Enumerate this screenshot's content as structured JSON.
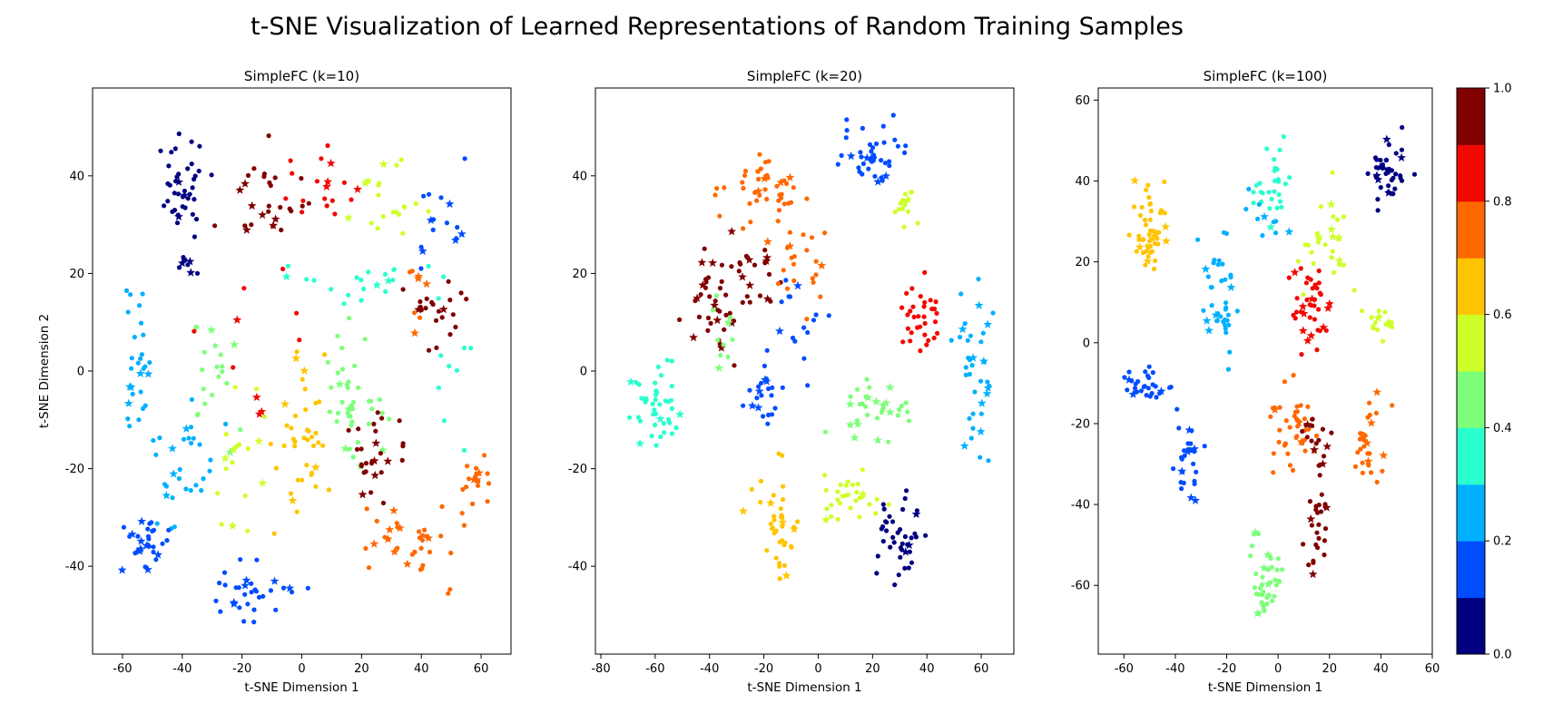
{
  "figure": {
    "title": "t-SNE Visualization of Learned Representations of Random Training Samples"
  },
  "colorbar": {
    "ticks": [
      "0.0",
      "0.2",
      "0.4",
      "0.6",
      "0.8",
      "1.0"
    ],
    "colors": [
      "#000080",
      "#0000f1",
      "#004cff",
      "#00b0ff",
      "#29ffce",
      "#7dff7a",
      "#ceff29",
      "#ffc400",
      "#ff6800",
      "#f10800",
      "#800000"
    ]
  },
  "chart_data": [
    {
      "type": "scatter",
      "title": "SimpleFC (k=10)",
      "xlabel": "t-SNE Dimension 1",
      "ylabel": "t-SNE Dimension 2",
      "xlim": [
        -70,
        70
      ],
      "ylim": [
        -58,
        58
      ],
      "xticks": [
        -60,
        -40,
        -20,
        0,
        20,
        40,
        60
      ],
      "yticks": [
        -40,
        -20,
        0,
        20,
        40
      ],
      "clusters": [
        {
          "class": 0,
          "center": [
            -40,
            38
          ],
          "spread": [
            7,
            9
          ],
          "n": 40
        },
        {
          "class": 0,
          "center": [
            -38,
            22
          ],
          "spread": [
            3,
            3
          ],
          "n": 8
        },
        {
          "class": 10,
          "center": [
            -10,
            36
          ],
          "spread": [
            14,
            10
          ],
          "n": 28
        },
        {
          "class": 9,
          "center": [
            5,
            40
          ],
          "spread": [
            14,
            9
          ],
          "n": 18
        },
        {
          "class": 6,
          "center": [
            28,
            35
          ],
          "spread": [
            10,
            8
          ],
          "n": 20
        },
        {
          "class": 4,
          "center": [
            20,
            20
          ],
          "spread": [
            22,
            8
          ],
          "n": 20
        },
        {
          "class": 2,
          "center": [
            45,
            32
          ],
          "spread": [
            8,
            10
          ],
          "n": 16
        },
        {
          "class": 10,
          "center": [
            45,
            13
          ],
          "spread": [
            8,
            10
          ],
          "n": 22
        },
        {
          "class": 8,
          "center": [
            38,
            17
          ],
          "spread": [
            6,
            6
          ],
          "n": 8
        },
        {
          "class": 3,
          "center": [
            -55,
            0
          ],
          "spread": [
            5,
            14
          ],
          "n": 28
        },
        {
          "class": 5,
          "center": [
            -28,
            2
          ],
          "spread": [
            9,
            14
          ],
          "n": 20
        },
        {
          "class": 7,
          "center": [
            0,
            -12
          ],
          "spread": [
            10,
            14
          ],
          "n": 40
        },
        {
          "class": 5,
          "center": [
            18,
            -5
          ],
          "spread": [
            12,
            14
          ],
          "n": 40
        },
        {
          "class": 10,
          "center": [
            25,
            -18
          ],
          "spread": [
            10,
            9
          ],
          "n": 28
        },
        {
          "class": 3,
          "center": [
            -40,
            -20
          ],
          "spread": [
            9,
            12
          ],
          "n": 30
        },
        {
          "class": 2,
          "center": [
            -52,
            -35
          ],
          "spread": [
            6,
            6
          ],
          "n": 30
        },
        {
          "class": 2,
          "center": [
            -15,
            -45
          ],
          "spread": [
            15,
            5
          ],
          "n": 32
        },
        {
          "class": 8,
          "center": [
            38,
            -35
          ],
          "spread": [
            14,
            8
          ],
          "n": 38
        },
        {
          "class": 8,
          "center": [
            58,
            -22
          ],
          "spread": [
            5,
            6
          ],
          "n": 18
        },
        {
          "class": 6,
          "center": [
            -22,
            -15
          ],
          "spread": [
            8,
            15
          ],
          "n": 18
        },
        {
          "class": 9,
          "center": [
            -15,
            5
          ],
          "spread": [
            15,
            15
          ],
          "n": 10
        },
        {
          "class": 4,
          "center": [
            50,
            -2
          ],
          "spread": [
            8,
            15
          ],
          "n": 10
        }
      ]
    },
    {
      "type": "scatter",
      "title": "SimpleFC (k=20)",
      "xlabel": "t-SNE Dimension 1",
      "ylabel": "",
      "xlim": [
        -82,
        72
      ],
      "ylim": [
        -58,
        58
      ],
      "xticks": [
        -80,
        -60,
        -40,
        -20,
        0,
        20,
        40,
        60
      ],
      "yticks": [
        -40,
        -20,
        0,
        20,
        40
      ],
      "clusters": [
        {
          "class": 8,
          "center": [
            -20,
            38
          ],
          "spread": [
            13,
            6
          ],
          "n": 44
        },
        {
          "class": 2,
          "center": [
            20,
            44
          ],
          "spread": [
            12,
            6
          ],
          "n": 40
        },
        {
          "class": 6,
          "center": [
            33,
            33
          ],
          "spread": [
            4,
            5
          ],
          "n": 14
        },
        {
          "class": 10,
          "center": [
            -38,
            15
          ],
          "spread": [
            10,
            10
          ],
          "n": 40
        },
        {
          "class": 10,
          "center": [
            -22,
            20
          ],
          "spread": [
            8,
            8
          ],
          "n": 18
        },
        {
          "class": 8,
          "center": [
            -5,
            20
          ],
          "spread": [
            8,
            12
          ],
          "n": 22
        },
        {
          "class": 9,
          "center": [
            38,
            10
          ],
          "spread": [
            7,
            8
          ],
          "n": 32
        },
        {
          "class": 3,
          "center": [
            58,
            0
          ],
          "spread": [
            6,
            14
          ],
          "n": 38
        },
        {
          "class": 4,
          "center": [
            -60,
            -8
          ],
          "spread": [
            9,
            10
          ],
          "n": 44
        },
        {
          "class": 2,
          "center": [
            -20,
            -5
          ],
          "spread": [
            6,
            8
          ],
          "n": 22
        },
        {
          "class": 5,
          "center": [
            20,
            -8
          ],
          "spread": [
            14,
            6
          ],
          "n": 32
        },
        {
          "class": 7,
          "center": [
            -15,
            -32
          ],
          "spread": [
            8,
            10
          ],
          "n": 40
        },
        {
          "class": 6,
          "center": [
            10,
            -25
          ],
          "spread": [
            10,
            5
          ],
          "n": 30
        },
        {
          "class": 0,
          "center": [
            30,
            -35
          ],
          "spread": [
            9,
            8
          ],
          "n": 40
        },
        {
          "class": 2,
          "center": [
            -8,
            8
          ],
          "spread": [
            14,
            10
          ],
          "n": 16
        },
        {
          "class": 5,
          "center": [
            -35,
            5
          ],
          "spread": [
            6,
            8
          ],
          "n": 10
        }
      ]
    },
    {
      "type": "scatter",
      "title": "SimpleFC (k=100)",
      "xlabel": "t-SNE Dimension 1",
      "ylabel": "",
      "xlim": [
        -70,
        60
      ],
      "ylim": [
        -77,
        63
      ],
      "xticks": [
        -60,
        -40,
        -20,
        0,
        20,
        40,
        60
      ],
      "yticks": [
        -60,
        -40,
        -20,
        0,
        20,
        40,
        60
      ],
      "clusters": [
        {
          "class": 0,
          "center": [
            43,
            42
          ],
          "spread": [
            6,
            9
          ],
          "n": 40
        },
        {
          "class": 7,
          "center": [
            -50,
            28
          ],
          "spread": [
            5,
            9
          ],
          "n": 50
        },
        {
          "class": 4,
          "center": [
            -2,
            38
          ],
          "spread": [
            7,
            7
          ],
          "n": 28
        },
        {
          "class": 6,
          "center": [
            20,
            25
          ],
          "spread": [
            10,
            12
          ],
          "n": 28
        },
        {
          "class": 3,
          "center": [
            -22,
            8
          ],
          "spread": [
            8,
            16
          ],
          "n": 40
        },
        {
          "class": 9,
          "center": [
            12,
            8
          ],
          "spread": [
            6,
            10
          ],
          "n": 40
        },
        {
          "class": 6,
          "center": [
            40,
            5
          ],
          "spread": [
            5,
            5
          ],
          "n": 16
        },
        {
          "class": 2,
          "center": [
            -52,
            -10
          ],
          "spread": [
            10,
            4
          ],
          "n": 30
        },
        {
          "class": 2,
          "center": [
            -35,
            -28
          ],
          "spread": [
            5,
            9
          ],
          "n": 30
        },
        {
          "class": 8,
          "center": [
            5,
            -22
          ],
          "spread": [
            10,
            10
          ],
          "n": 40
        },
        {
          "class": 8,
          "center": [
            35,
            -25
          ],
          "spread": [
            5,
            10
          ],
          "n": 28
        },
        {
          "class": 10,
          "center": [
            15,
            -45
          ],
          "spread": [
            4,
            12
          ],
          "n": 28
        },
        {
          "class": 5,
          "center": [
            -5,
            -58
          ],
          "spread": [
            6,
            10
          ],
          "n": 40
        },
        {
          "class": 10,
          "center": [
            15,
            -22
          ],
          "spread": [
            5,
            5
          ],
          "n": 14
        },
        {
          "class": 3,
          "center": [
            -5,
            30
          ],
          "spread": [
            7,
            6
          ],
          "n": 10
        }
      ]
    }
  ]
}
